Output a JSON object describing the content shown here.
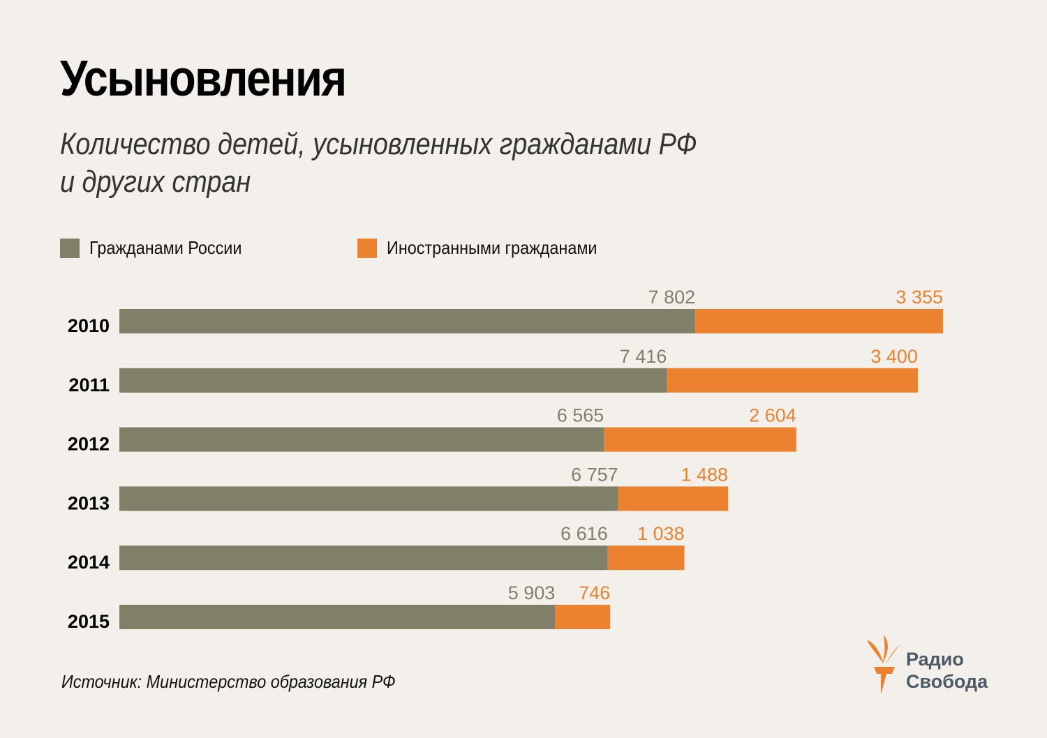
{
  "header": {
    "title": "Усыновления",
    "subtitle_line1": "Количество детей, усыновленных гражданами РФ",
    "subtitle_line2": "и других стран"
  },
  "legend": [
    {
      "label": "Гражданами России",
      "color": "#807f67"
    },
    {
      "label": "Иностранными гражданами",
      "color": "#ec8230"
    }
  ],
  "source": "Источник: Министерство образования РФ",
  "logo": {
    "line1": "Радио",
    "line2": "Свобода",
    "icon": "torch-icon",
    "text_color": "#4b5a64",
    "icon_color": "#ec8230"
  },
  "chart_data": {
    "type": "bar",
    "orientation": "horizontal",
    "stacked": true,
    "title": "Усыновления",
    "subtitle": "Количество детей, усыновленных гражданами РФ и других стран",
    "categories": [
      "2010",
      "2011",
      "2012",
      "2013",
      "2014",
      "2015"
    ],
    "series": [
      {
        "name": "Гражданами России",
        "color": "#807f67",
        "values": [
          7802,
          7416,
          6565,
          6757,
          6616,
          5903
        ],
        "labels": [
          "7 802",
          "7 416",
          "6 565",
          "6 757",
          "6 616",
          "5 903"
        ]
      },
      {
        "name": "Иностранными гражданами",
        "color": "#ec8230",
        "values": [
          3355,
          3400,
          2604,
          1488,
          1038,
          746
        ],
        "labels": [
          "3 355",
          "3 400",
          "2 604",
          "1 488",
          "1 038",
          "746"
        ]
      }
    ],
    "xlabel": "",
    "ylabel": "",
    "xlim": [
      0,
      11157
    ],
    "grid": false,
    "legend_position": "top-left"
  }
}
